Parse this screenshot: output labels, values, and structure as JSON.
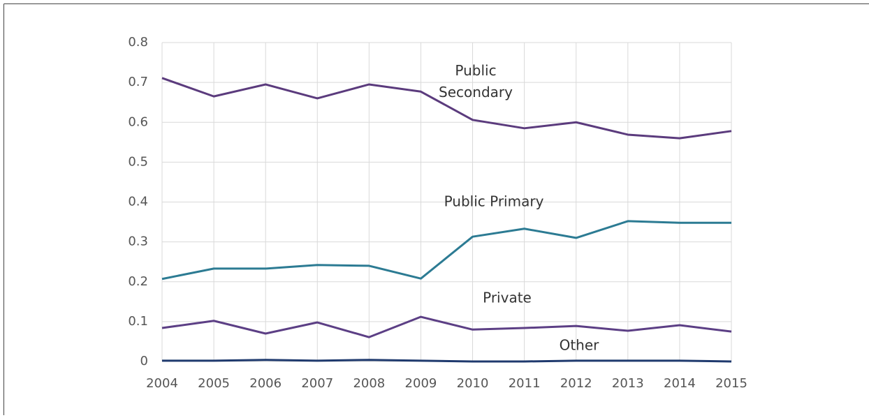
{
  "chart_data": {
    "type": "line",
    "categories": [
      "2004",
      "2005",
      "2006",
      "2007",
      "2008",
      "2009",
      "2010",
      "2011",
      "2012",
      "2013",
      "2014",
      "2015"
    ],
    "series": [
      {
        "name": "Public Secondary",
        "color": "#5b3b7d",
        "values": [
          0.711,
          0.665,
          0.695,
          0.66,
          0.695,
          0.677,
          0.606,
          0.585,
          0.6,
          0.569,
          0.56,
          0.578
        ]
      },
      {
        "name": "Public Primary",
        "color": "#2c7b93",
        "values": [
          0.207,
          0.233,
          0.233,
          0.242,
          0.24,
          0.208,
          0.313,
          0.333,
          0.31,
          0.352,
          0.348,
          0.348
        ]
      },
      {
        "name": "Private",
        "color": "#5c3f85",
        "values": [
          0.084,
          0.102,
          0.07,
          0.098,
          0.061,
          0.112,
          0.08,
          0.084,
          0.089,
          0.077,
          0.091,
          0.075
        ]
      },
      {
        "name": "Other",
        "color": "#1f3a6e",
        "values": [
          0.002,
          0.002,
          0.004,
          0.002,
          0.004,
          0.002,
          0,
          0,
          0.002,
          0.002,
          0.002,
          0
        ]
      }
    ],
    "ylim": [
      0,
      0.8
    ],
    "yticks": [
      0,
      0.1,
      0.2,
      0.3,
      0.4,
      0.5,
      0.6,
      0.7,
      0.8
    ],
    "grid": true
  }
}
